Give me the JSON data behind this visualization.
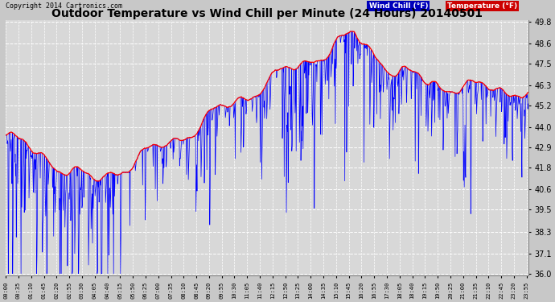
{
  "title": "Outdoor Temperature vs Wind Chill per Minute (24 Hours) 20140501",
  "copyright": "Copyright 2014 Cartronics.com",
  "ylabel_right_ticks": [
    49.8,
    48.6,
    47.5,
    46.3,
    45.2,
    44.0,
    42.9,
    41.8,
    40.6,
    39.5,
    38.3,
    37.1,
    36.0
  ],
  "ymin": 36.0,
  "ymax": 49.8,
  "bg_color": "#c8c8c8",
  "plot_bg_color": "#d8d8d8",
  "grid_color": "#ffffff",
  "title_fontsize": 10,
  "temp_color": "#ff0000",
  "windchill_color": "#0000ff",
  "legend_wc_bg": "#0000cc",
  "legend_temp_bg": "#cc0000"
}
